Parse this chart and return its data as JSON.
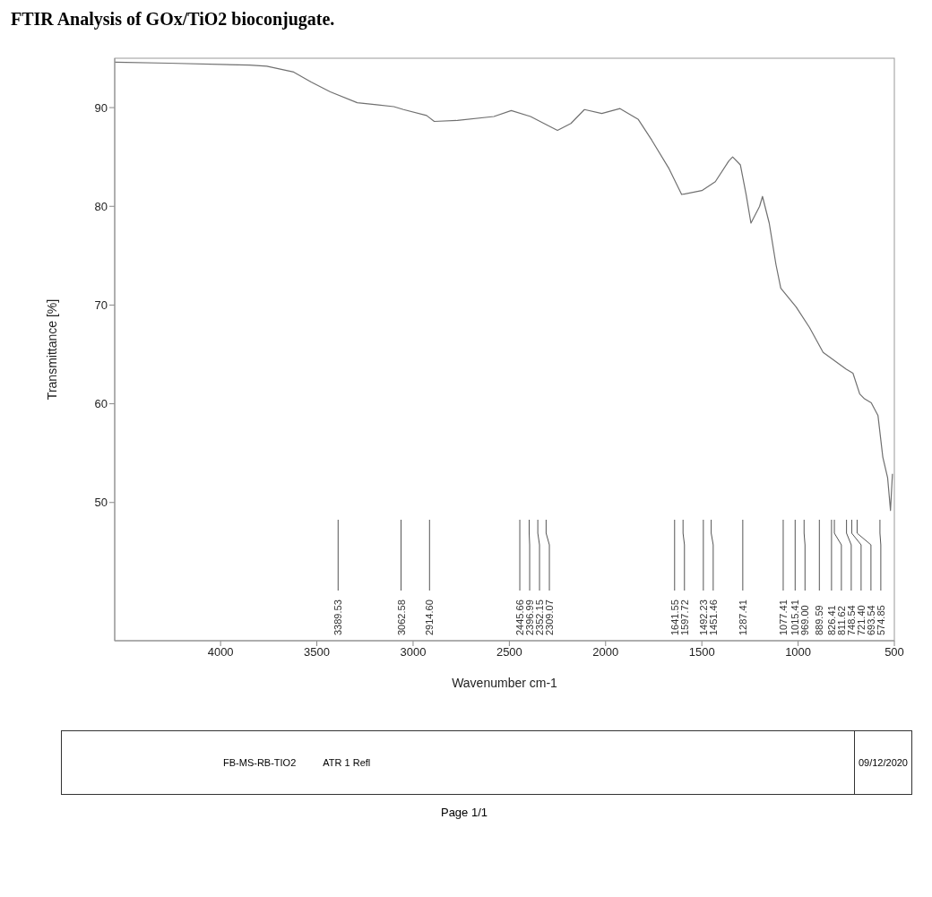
{
  "chart_data": {
    "type": "line",
    "title": "FTIR Analysis of GOx/TiO2 bioconjugate.",
    "xlabel": "Wavenumber cm-1",
    "ylabel": "Transmittance [%]",
    "x": [
      4550,
      4270,
      3850,
      3760,
      3620,
      3530,
      3430,
      3290,
      3190,
      3100,
      3050,
      2930,
      2890,
      2770,
      2580,
      2490,
      2390,
      2300,
      2250,
      2180,
      2110,
      2020,
      1925,
      1830,
      1760,
      1670,
      1605,
      1500,
      1430,
      1360,
      1340,
      1300,
      1270,
      1245,
      1200,
      1185,
      1150,
      1115,
      1090,
      1010,
      940,
      870,
      750,
      715,
      680,
      655,
      620,
      585,
      560,
      535,
      520,
      510
    ],
    "values": [
      94.6,
      94.5,
      94.3,
      94.2,
      93.6,
      92.6,
      91.6,
      90.5,
      90.3,
      90.1,
      89.8,
      89.2,
      88.6,
      88.7,
      89.1,
      89.7,
      89.1,
      88.2,
      87.7,
      88.4,
      89.8,
      89.4,
      89.9,
      88.8,
      86.7,
      83.8,
      81.2,
      81.6,
      82.5,
      84.6,
      85.0,
      84.2,
      81.2,
      78.3,
      80.0,
      81.0,
      78.3,
      74.1,
      71.7,
      69.8,
      67.7,
      65.2,
      63.5,
      63.1,
      61.0,
      60.5,
      60.1,
      58.8,
      54.6,
      52.5,
      49.2,
      52.9
    ],
    "color": "#707070",
    "line_style": "solid",
    "marker": "none",
    "grid": false,
    "legend": false,
    "xlim": [
      4550,
      500
    ],
    "xticks": [
      4000,
      3500,
      3000,
      2500,
      2000,
      1500,
      1000,
      500
    ],
    "ylim": [
      36,
      95
    ],
    "yticks": [
      50,
      60,
      70,
      80,
      90
    ],
    "annotations": [
      "3389.53",
      "3062.58",
      "2914.60",
      "2445.66",
      "2396.99",
      "2352.15",
      "2309.07",
      "1641.55",
      "1597.72",
      "1492.23",
      "1451.46",
      "1287.41",
      "1077.41",
      "1015.41",
      "969.00",
      "889.59",
      "826.41",
      "811.62",
      "748.54",
      "721.40",
      "693.54",
      "574.85",
      "FB-MS-RB-TIO2",
      "ATR 1 Refl",
      "09/12/2020",
      "Page 1/1"
    ]
  }
}
